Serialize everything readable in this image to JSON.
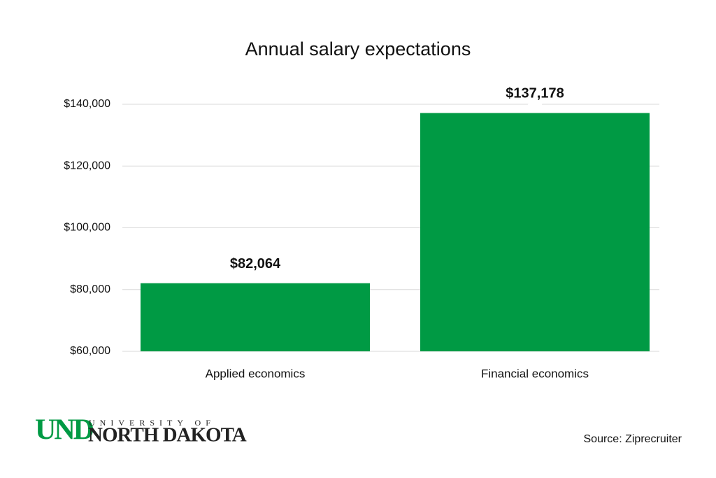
{
  "chart_data": {
    "type": "bar",
    "title": "Annual salary expectations",
    "categories": [
      "Applied economics",
      "Financial economics"
    ],
    "values": [
      82064,
      137178
    ],
    "value_labels": [
      "$82,064",
      "$137,178"
    ],
    "color": "#009a44",
    "ylim": [
      60000,
      140000
    ],
    "yticks": [
      {
        "value": 60000,
        "label": "$60,000"
      },
      {
        "value": 80000,
        "label": "$80,000"
      },
      {
        "value": 100000,
        "label": "$100,000"
      },
      {
        "value": 120000,
        "label": "$120,000"
      },
      {
        "value": 140000,
        "label": "$140,000"
      }
    ],
    "grid": true,
    "source": "Source: Ziprecruiter"
  },
  "logo": {
    "mark": "UND",
    "line1": "UNIVERSITY OF",
    "line2": "NORTH DAKOTA"
  }
}
